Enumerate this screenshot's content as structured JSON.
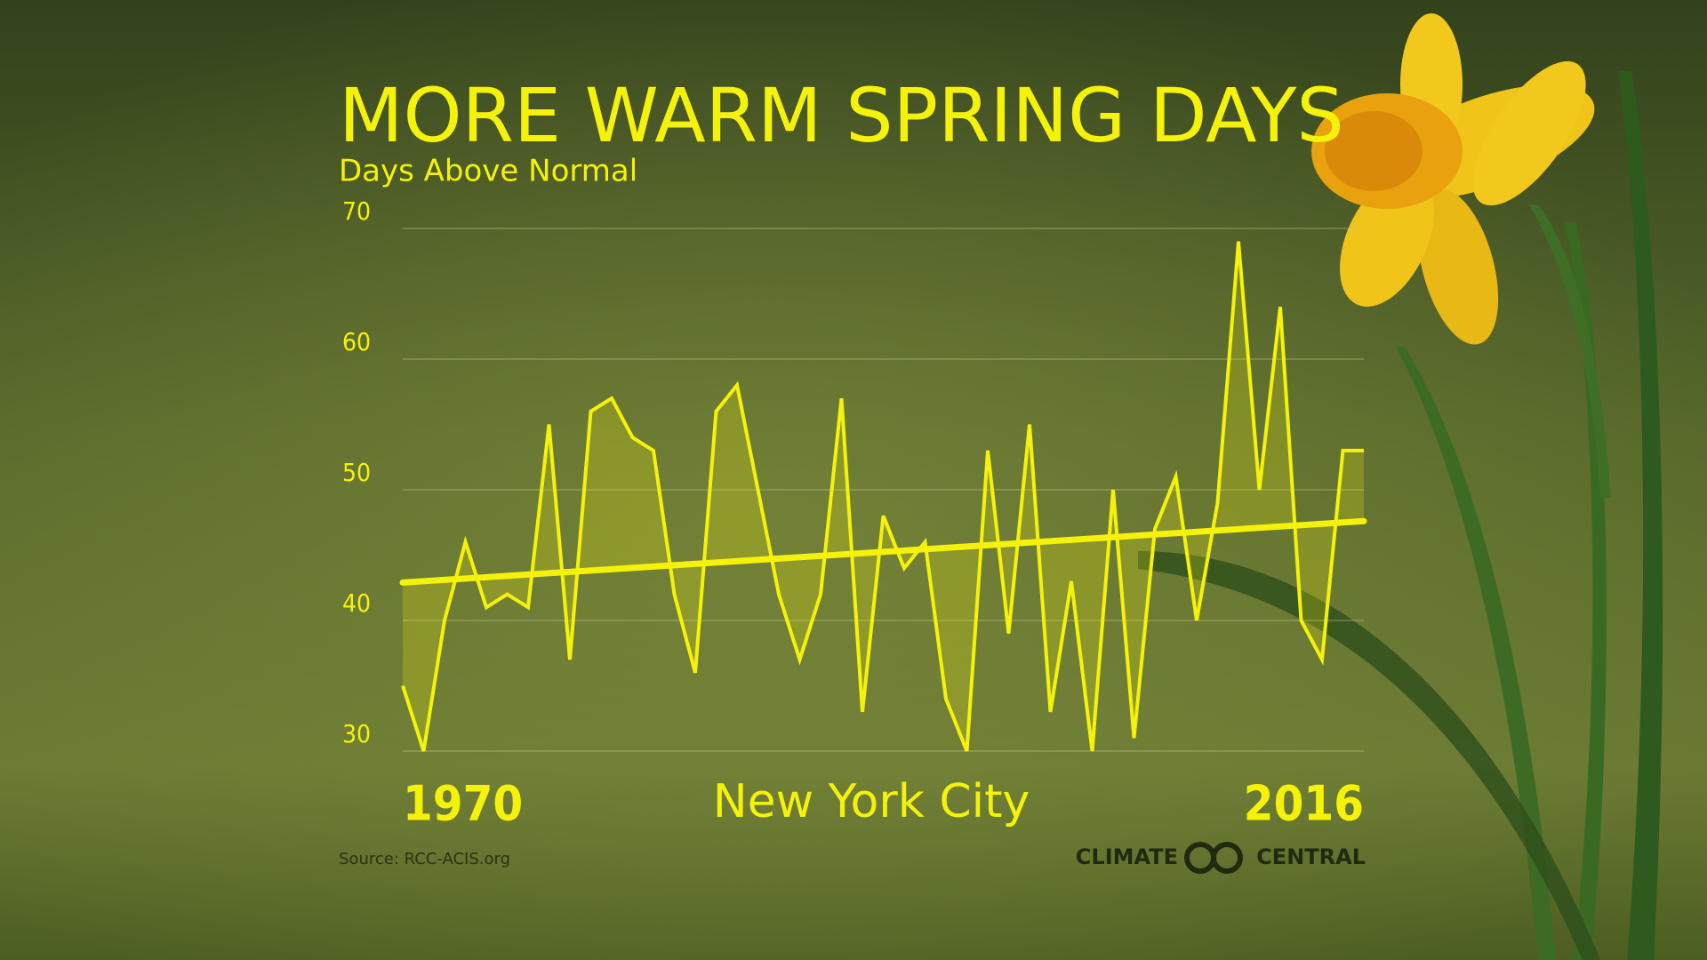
{
  "chart_data": {
    "type": "line",
    "title": "MORE WARM SPRING DAYS",
    "subtitle": "Days Above Normal",
    "annotation": "New York City",
    "source": "Source: RCC-ACIS.org",
    "logo": {
      "left": "CLIMATE",
      "right": "CENTRAL"
    },
    "x": [
      1970,
      1971,
      1972,
      1973,
      1974,
      1975,
      1976,
      1977,
      1978,
      1979,
      1980,
      1981,
      1982,
      1983,
      1984,
      1985,
      1986,
      1987,
      1988,
      1989,
      1990,
      1991,
      1992,
      1993,
      1994,
      1995,
      1996,
      1997,
      1998,
      1999,
      2000,
      2001,
      2002,
      2003,
      2004,
      2005,
      2006,
      2007,
      2008,
      2009,
      2010,
      2011,
      2012,
      2013,
      2014,
      2015,
      2016
    ],
    "values": [
      35,
      30,
      40,
      46,
      41,
      42,
      41,
      55,
      37,
      56,
      57,
      54,
      53,
      42,
      36,
      56,
      58,
      50,
      42,
      37,
      42,
      57,
      33,
      48,
      44,
      46,
      34,
      30,
      53,
      39,
      55,
      33,
      43,
      30,
      50,
      31,
      47,
      51,
      40,
      49,
      69,
      50,
      64,
      40,
      37,
      53,
      53
    ],
    "trend": {
      "x": [
        1970,
        2016
      ],
      "values": [
        42.9,
        47.6
      ]
    },
    "color": "#f5f20a",
    "xlim": [
      1970,
      2016
    ],
    "xticks": [
      1970,
      2016
    ],
    "ylim": [
      30,
      70
    ],
    "yticks": [
      30,
      40,
      50,
      60,
      70
    ],
    "grid": true
  }
}
